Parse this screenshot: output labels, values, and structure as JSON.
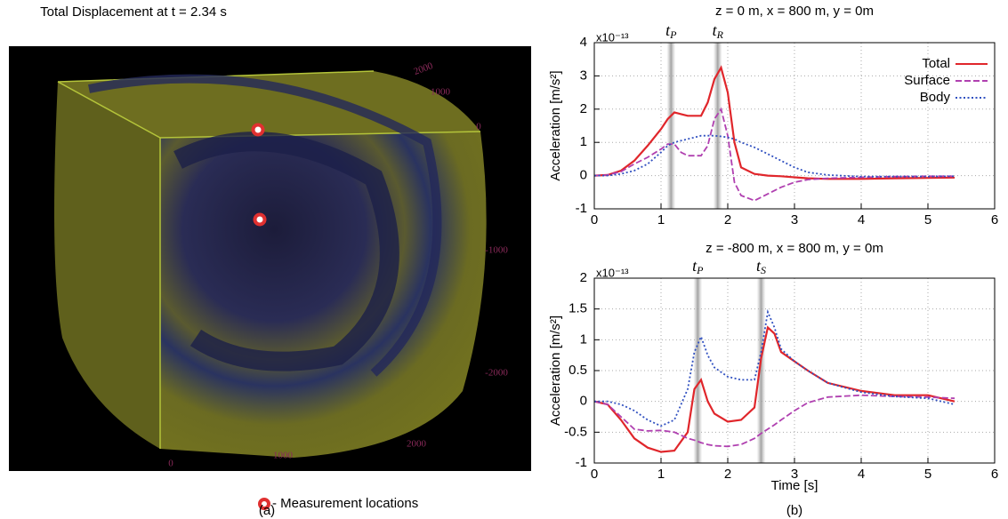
{
  "figure": {
    "left_title": "Total Displacement at t = 2.34 s",
    "legend_note": "- Measurement locations",
    "panel_a": "(a)",
    "panel_b": "(b)",
    "image_labels": [
      "2000",
      "1000",
      "0",
      "-1000",
      "-2000",
      "0",
      "1000",
      "2000"
    ]
  },
  "chart_data": [
    {
      "type": "line",
      "title": "z = 0 m, x = 800 m, y = 0m",
      "y_label": "Acceleration [m/s²]",
      "scale_label": "x10⁻¹³",
      "xlim": [
        0,
        6
      ],
      "xticks": [
        0,
        1,
        2,
        3,
        4,
        5,
        6
      ],
      "ylim": [
        -1,
        4
      ],
      "yticks": [
        -1,
        0,
        1,
        2,
        3,
        4
      ],
      "grid": true,
      "legend": "upper right",
      "markers": [
        {
          "x": 1.15,
          "t": "t",
          "sub": "P"
        },
        {
          "x": 1.85,
          "t": "t",
          "sub": "R"
        }
      ],
      "x": [
        0,
        0.2,
        0.4,
        0.6,
        0.8,
        1.0,
        1.1,
        1.2,
        1.3,
        1.4,
        1.5,
        1.6,
        1.7,
        1.8,
        1.9,
        2.0,
        2.1,
        2.2,
        2.4,
        2.6,
        2.8,
        3.0,
        3.2,
        3.5,
        4.0,
        4.5,
        5.0,
        5.4
      ],
      "series": [
        {
          "name": "Total",
          "color": "#e0262b",
          "style": "solid",
          "values": [
            0,
            0.02,
            0.15,
            0.45,
            0.9,
            1.4,
            1.7,
            1.9,
            1.85,
            1.8,
            1.8,
            1.8,
            2.2,
            2.9,
            3.25,
            2.5,
            1.0,
            0.25,
            0.05,
            0,
            -0.02,
            -0.05,
            -0.08,
            -0.1,
            -0.1,
            -0.08,
            -0.07,
            -0.06
          ]
        },
        {
          "name": "Surface",
          "color": "#b040b0",
          "style": "dashed",
          "values": [
            0,
            0.02,
            0.12,
            0.35,
            0.55,
            0.8,
            0.95,
            0.95,
            0.7,
            0.6,
            0.6,
            0.6,
            0.9,
            1.7,
            2.0,
            1.2,
            -0.2,
            -0.6,
            -0.75,
            -0.55,
            -0.35,
            -0.2,
            -0.12,
            -0.08,
            -0.05,
            -0.03,
            -0.02,
            -0.02
          ]
        },
        {
          "name": "Body",
          "color": "#3050c0",
          "style": "dotted",
          "values": [
            0,
            0,
            0.05,
            0.15,
            0.35,
            0.7,
            0.9,
            1.0,
            1.05,
            1.1,
            1.15,
            1.2,
            1.2,
            1.2,
            1.18,
            1.15,
            1.1,
            1.0,
            0.85,
            0.65,
            0.45,
            0.25,
            0.1,
            0.02,
            -0.03,
            -0.03,
            -0.03,
            -0.02
          ]
        }
      ]
    },
    {
      "type": "line",
      "title": "z = -800 m, x = 800 m, y = 0m",
      "y_label": "Acceleration [m/s²]",
      "x_label": "Time [s]",
      "scale_label": "x10⁻¹³",
      "xlim": [
        0,
        6
      ],
      "xticks": [
        0,
        1,
        2,
        3,
        4,
        5,
        6
      ],
      "ylim": [
        -1,
        2
      ],
      "yticks": [
        -1,
        -0.5,
        0,
        0.5,
        1,
        1.5,
        2
      ],
      "grid": true,
      "markers": [
        {
          "x": 1.55,
          "t": "t",
          "sub": "P"
        },
        {
          "x": 2.5,
          "t": "t",
          "sub": "S"
        }
      ],
      "x": [
        0,
        0.2,
        0.4,
        0.6,
        0.8,
        1.0,
        1.2,
        1.4,
        1.5,
        1.6,
        1.7,
        1.8,
        2.0,
        2.2,
        2.4,
        2.5,
        2.6,
        2.7,
        2.8,
        3.0,
        3.2,
        3.5,
        4.0,
        4.5,
        5.0,
        5.4
      ],
      "series": [
        {
          "color": "#e0262b",
          "style": "solid",
          "values": [
            0,
            -0.05,
            -0.3,
            -0.6,
            -0.75,
            -0.82,
            -0.8,
            -0.5,
            0.2,
            0.35,
            0,
            -0.2,
            -0.33,
            -0.3,
            -0.1,
            0.7,
            1.2,
            1.1,
            0.8,
            0.65,
            0.5,
            0.3,
            0.17,
            0.1,
            0.1,
            0
          ]
        },
        {
          "color": "#b040b0",
          "style": "dashed",
          "values": [
            0,
            -0.05,
            -0.25,
            -0.45,
            -0.48,
            -0.47,
            -0.5,
            -0.6,
            -0.63,
            -0.67,
            -0.7,
            -0.72,
            -0.73,
            -0.7,
            -0.6,
            -0.52,
            -0.45,
            -0.38,
            -0.3,
            -0.15,
            -0.02,
            0.07,
            0.1,
            0.08,
            0.07,
            0.05
          ]
        },
        {
          "color": "#3050c0",
          "style": "dotted",
          "values": [
            0,
            0,
            -0.05,
            -0.15,
            -0.3,
            -0.4,
            -0.3,
            0.2,
            0.8,
            1.05,
            0.75,
            0.55,
            0.4,
            0.35,
            0.35,
            0.8,
            1.45,
            1.2,
            0.85,
            0.65,
            0.5,
            0.3,
            0.15,
            0.08,
            0.05,
            -0.05
          ]
        }
      ]
    }
  ]
}
